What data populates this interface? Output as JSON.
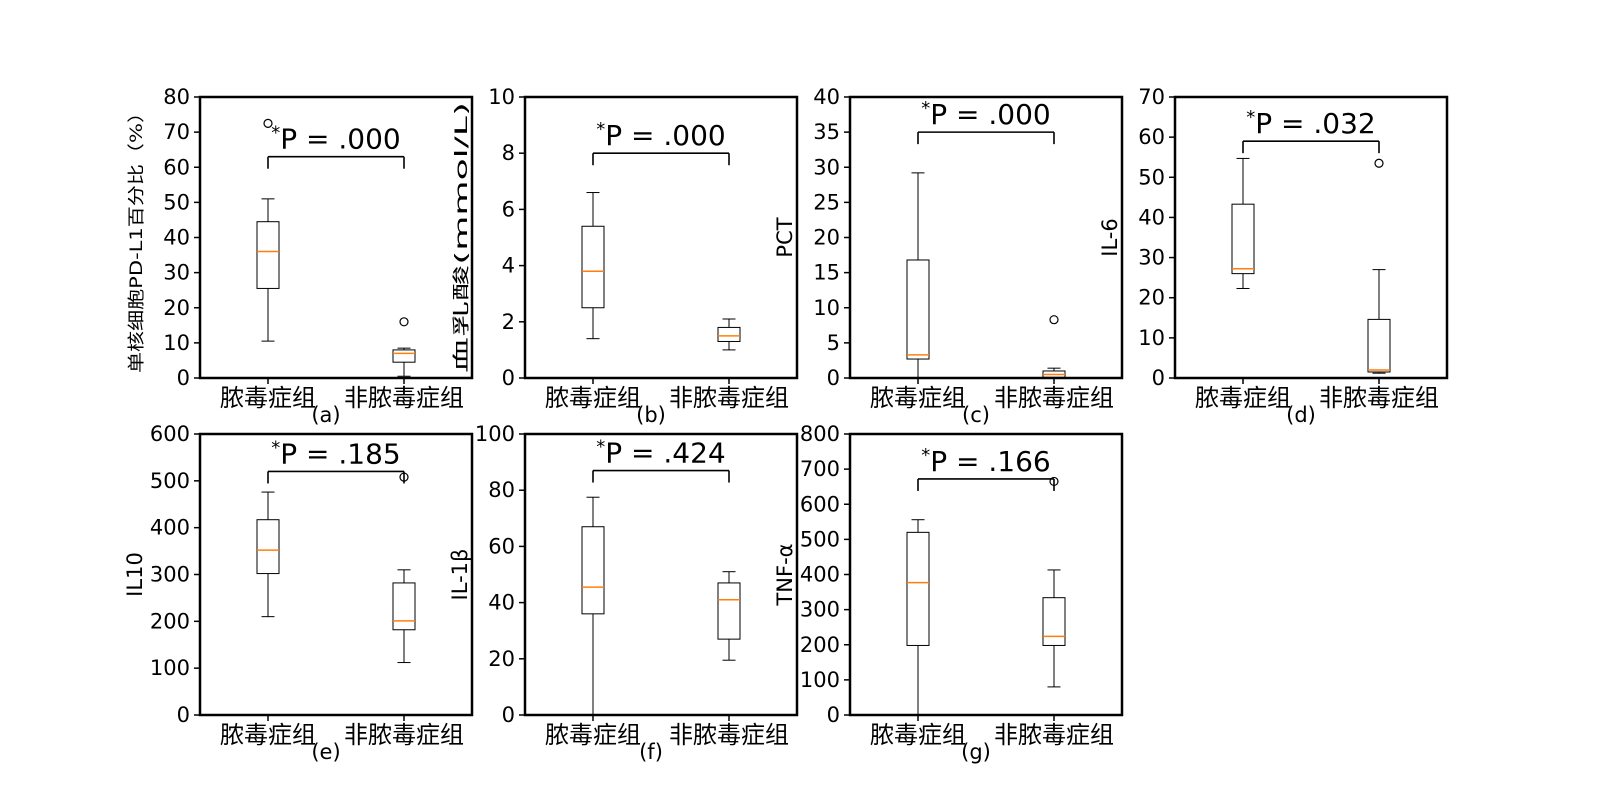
{
  "chart_data": [
    {
      "type": "box",
      "panel_label": "(a)",
      "ylabel": "单核细胞PD-L1百分比（%）",
      "ylim": [
        0,
        80
      ],
      "yticks": [
        0,
        10,
        20,
        30,
        40,
        50,
        60,
        70,
        80
      ],
      "categories": [
        "脓毒症组",
        "非脓毒症组"
      ],
      "boxes": [
        {
          "whisker_low": 10.5,
          "q1": 25.5,
          "median": 36,
          "q3": 44.5,
          "whisker_high": 51,
          "outliers": [
            72.5
          ]
        },
        {
          "whisker_low": 0.5,
          "q1": 4.5,
          "median": 7,
          "q3": 8,
          "whisker_high": 8.5,
          "outliers": [
            16
          ]
        }
      ],
      "annotation": {
        "star": "*",
        "text": "P = .000",
        "bracket_y": 63
      }
    },
    {
      "type": "box",
      "panel_label": "(b)",
      "ylabel": "血乳酸(mmol/L)",
      "ylim": [
        0,
        10
      ],
      "yticks": [
        0,
        2,
        4,
        6,
        8,
        10
      ],
      "categories": [
        "脓毒症组",
        "非脓毒症组"
      ],
      "boxes": [
        {
          "whisker_low": 1.4,
          "q1": 2.5,
          "median": 3.8,
          "q3": 5.4,
          "whisker_high": 6.6,
          "outliers": []
        },
        {
          "whisker_low": 1.0,
          "q1": 1.3,
          "median": 1.5,
          "q3": 1.8,
          "whisker_high": 2.1,
          "outliers": []
        }
      ],
      "annotation": {
        "star": "*",
        "text": "P = .000",
        "bracket_y": 8
      }
    },
    {
      "type": "box",
      "panel_label": "(c)",
      "ylabel": "PCT",
      "ylim": [
        0,
        40
      ],
      "yticks": [
        0,
        5,
        10,
        15,
        20,
        25,
        30,
        35,
        40
      ],
      "categories": [
        "脓毒症组",
        "非脓毒症组"
      ],
      "boxes": [
        {
          "whisker_low": 0,
          "q1": 2.7,
          "median": 3.3,
          "q3": 16.8,
          "whisker_high": 29.2,
          "outliers": []
        },
        {
          "whisker_low": 0,
          "q1": 0.1,
          "median": 0.5,
          "q3": 1.0,
          "whisker_high": 1.4,
          "outliers": [
            8.3
          ]
        }
      ],
      "annotation": {
        "star": "*",
        "text": "P = .000",
        "bracket_y": 35
      }
    },
    {
      "type": "box",
      "panel_label": "(d)",
      "ylabel": "IL-6",
      "ylim": [
        0,
        70
      ],
      "yticks": [
        0,
        10,
        20,
        30,
        40,
        50,
        60,
        70
      ],
      "categories": [
        "脓毒症组",
        "非脓毒症组"
      ],
      "boxes": [
        {
          "whisker_low": 22.3,
          "q1": 26,
          "median": 27.2,
          "q3": 43.3,
          "whisker_high": 54.7,
          "outliers": []
        },
        {
          "whisker_low": 1.2,
          "q1": 1.5,
          "median": 2,
          "q3": 14.6,
          "whisker_high": 27,
          "outliers": [
            53.5
          ]
        }
      ],
      "annotation": {
        "star": "*",
        "text": "P = .032",
        "bracket_y": 59
      }
    },
    {
      "type": "box",
      "panel_label": "(e)",
      "ylabel": "IL10",
      "ylim": [
        0,
        600
      ],
      "yticks": [
        0,
        100,
        200,
        300,
        400,
        500,
        600
      ],
      "categories": [
        "脓毒症组",
        "非脓毒症组"
      ],
      "boxes": [
        {
          "whisker_low": 210,
          "q1": 302,
          "median": 352,
          "q3": 417,
          "whisker_high": 476,
          "outliers": []
        },
        {
          "whisker_low": 112,
          "q1": 182,
          "median": 201,
          "q3": 282,
          "whisker_high": 310,
          "outliers": [
            508
          ]
        }
      ],
      "annotation": {
        "star": "*",
        "text": "P = .185",
        "bracket_y": 520
      }
    },
    {
      "type": "box",
      "panel_label": "(f)",
      "ylabel": "IL-1β",
      "ylim": [
        0,
        100
      ],
      "yticks": [
        0,
        20,
        40,
        60,
        80,
        100
      ],
      "categories": [
        "脓毒症组",
        "非脓毒症组"
      ],
      "boxes": [
        {
          "whisker_low": 0,
          "q1": 36,
          "median": 45.5,
          "q3": 67,
          "whisker_high": 77.5,
          "outliers": []
        },
        {
          "whisker_low": 19.5,
          "q1": 27,
          "median": 41,
          "q3": 47,
          "whisker_high": 51,
          "outliers": []
        }
      ],
      "annotation": {
        "star": "*",
        "text": "P = .424",
        "bracket_y": 87
      }
    },
    {
      "type": "box",
      "panel_label": "(g)",
      "ylabel": "TNF-α",
      "ylim": [
        0,
        800
      ],
      "yticks": [
        0,
        100,
        200,
        300,
        400,
        500,
        600,
        700,
        800
      ],
      "categories": [
        "脓毒症组",
        "非脓毒症组"
      ],
      "boxes": [
        {
          "whisker_low": 0,
          "q1": 198,
          "median": 377,
          "q3": 520,
          "whisker_high": 556,
          "outliers": []
        },
        {
          "whisker_low": 80,
          "q1": 198,
          "median": 224,
          "q3": 334,
          "whisker_high": 413,
          "outliers": [
            665
          ]
        }
      ],
      "annotation": {
        "star": "*",
        "text": "P = .166",
        "bracket_y": 672
      }
    }
  ],
  "colors": {
    "median": "#ff7f0e",
    "frame": "#000000",
    "background": "#ffffff"
  }
}
